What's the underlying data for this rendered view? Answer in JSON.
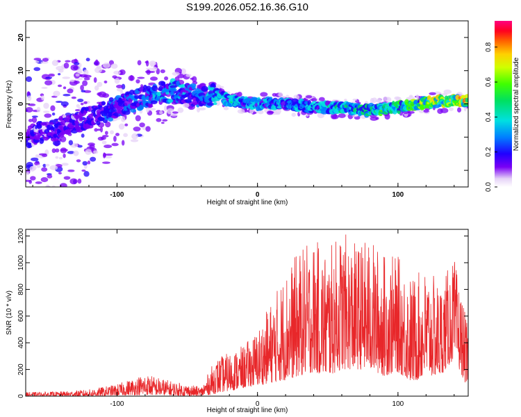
{
  "chart_data": [
    {
      "type": "heatmap",
      "title": "S199.2026.052.16.36.G10",
      "xlabel": "Height of straight line (km)",
      "ylabel": "Frequency (Hz)",
      "xlim": [
        -165,
        150
      ],
      "ylim": [
        -25,
        25
      ],
      "xticks": [
        -100,
        0,
        100
      ],
      "yticks": [
        -20,
        -10,
        0,
        10,
        20
      ],
      "colorbar": {
        "label": "Normalized spectral amplitude",
        "range": [
          0,
          0.95
        ],
        "ticks": [
          "0.0",
          "0.2",
          "0.4",
          "0.6",
          "0.8"
        ],
        "tick_values": [
          0.0,
          0.2,
          0.4,
          0.6,
          0.8
        ]
      },
      "ridge": {
        "description_points_x": [
          -165,
          -140,
          -120,
          -100,
          -80,
          -60,
          -40,
          -30,
          -20,
          0,
          20,
          40,
          60,
          80,
          100,
          120,
          150
        ],
        "frequency_hz": [
          -10,
          -7,
          -4,
          -1,
          2,
          4,
          2,
          3,
          1,
          0,
          0,
          -1,
          -1,
          -2,
          -1,
          0.5,
          1
        ],
        "peak_amplitude": [
          0.25,
          0.3,
          0.3,
          0.35,
          0.4,
          0.45,
          0.4,
          0.5,
          0.55,
          0.5,
          0.5,
          0.5,
          0.55,
          0.6,
          0.7,
          0.85,
          0.9
        ]
      }
    },
    {
      "type": "line",
      "xlabel": "Height of straight line (km)",
      "ylabel": "SNR (10 * v/v)",
      "xlim": [
        -165,
        150
      ],
      "ylim": [
        0,
        1250
      ],
      "xticks": [
        -100,
        0,
        100
      ],
      "yticks": [
        0,
        200,
        400,
        600,
        800,
        1000,
        1200
      ],
      "color": "#e8272a",
      "envelope_x": [
        -165,
        -140,
        -120,
        -100,
        -80,
        -60,
        -40,
        -30,
        -20,
        -10,
        0,
        10,
        20,
        30,
        40,
        50,
        60,
        70,
        80,
        90,
        100,
        110,
        120,
        130,
        140,
        150
      ],
      "envelope_max": [
        30,
        35,
        50,
        90,
        170,
        110,
        70,
        280,
        330,
        380,
        500,
        720,
        950,
        1100,
        1180,
        1100,
        1240,
        1150,
        1180,
        1080,
        1050,
        900,
        960,
        850,
        1040,
        500
      ],
      "envelope_min": [
        0,
        0,
        0,
        5,
        10,
        5,
        0,
        20,
        40,
        60,
        80,
        100,
        120,
        150,
        180,
        150,
        200,
        200,
        200,
        150,
        180,
        100,
        150,
        150,
        280,
        50
      ]
    }
  ]
}
